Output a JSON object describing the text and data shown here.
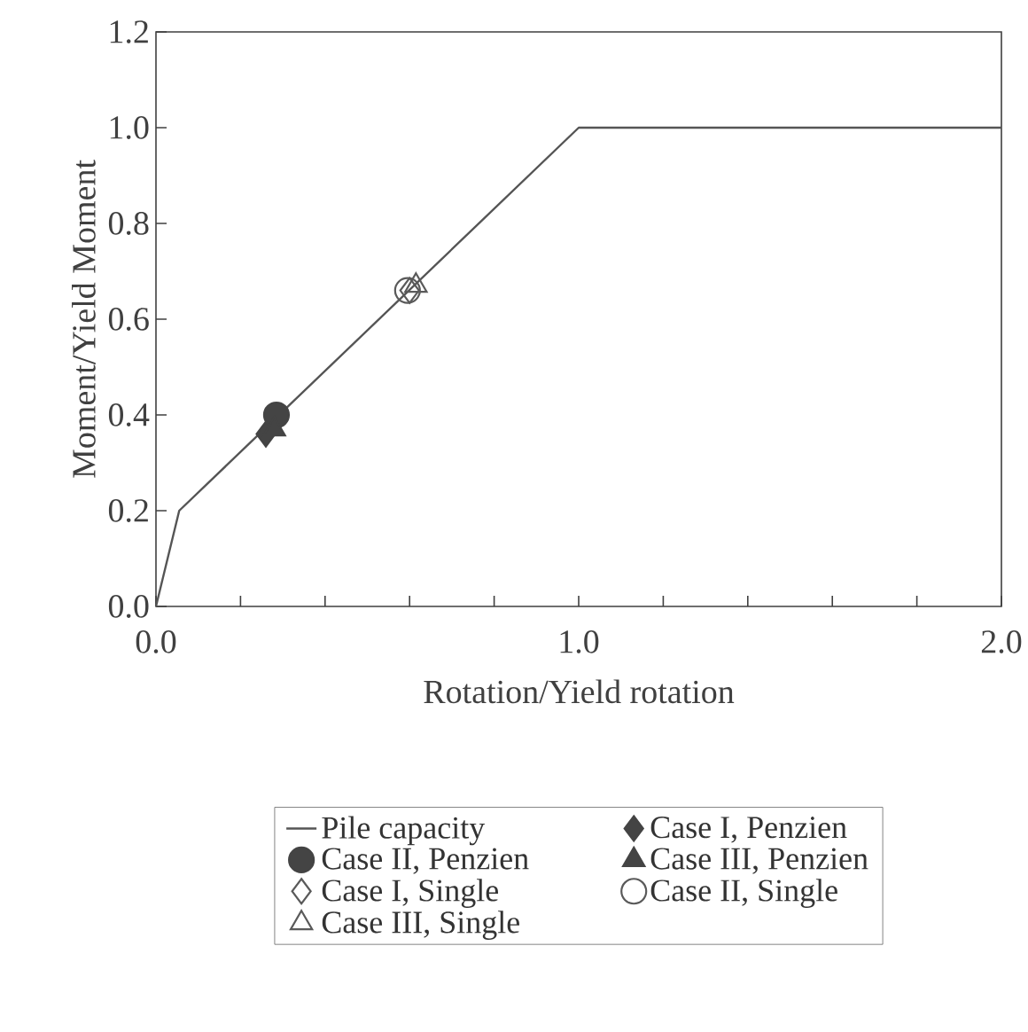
{
  "chart_data": {
    "type": "scatter",
    "xlabel": "Rotation/Yield rotation",
    "ylabel": "Moment/Yield Moment",
    "xlim": [
      0,
      2
    ],
    "ylim": [
      0,
      1.2
    ],
    "xticks": [
      {
        "value": 0,
        "label": "0.0"
      },
      {
        "value": 0.2,
        "label": null
      },
      {
        "value": 0.4,
        "label": null
      },
      {
        "value": 0.6,
        "label": null
      },
      {
        "value": 0.8,
        "label": null
      },
      {
        "value": 1,
        "label": "1.0"
      },
      {
        "value": 1.2,
        "label": null
      },
      {
        "value": 1.4,
        "label": null
      },
      {
        "value": 1.6,
        "label": null
      },
      {
        "value": 1.8,
        "label": null
      },
      {
        "value": 2,
        "label": "2.0"
      }
    ],
    "yticks": [
      {
        "value": 0,
        "label": "0.0"
      },
      {
        "value": 0.2,
        "label": "0.2"
      },
      {
        "value": 0.4,
        "label": "0.4"
      },
      {
        "value": 0.6,
        "label": "0.6"
      },
      {
        "value": 0.8,
        "label": "0.8"
      },
      {
        "value": 1,
        "label": "1.0"
      },
      {
        "value": 1.2,
        "label": "1.2"
      }
    ],
    "legend": "bottom",
    "grid": false,
    "series": [
      {
        "name": "Pile capacity",
        "type": "line",
        "color": "#555555",
        "marker": "none",
        "x": [
          0,
          0.055,
          1,
          2
        ],
        "values": [
          0,
          0.2,
          1,
          1
        ]
      },
      {
        "name": "Case I, Penzien",
        "color": "#444444",
        "marker": "diamond",
        "x": [
          0.26
        ],
        "values": [
          0.36
        ]
      },
      {
        "name": "Case II, Penzien",
        "color": "#444444",
        "marker": "circle",
        "x": [
          0.285
        ],
        "values": [
          0.4
        ]
      },
      {
        "name": "Case III, Penzien",
        "color": "#444444",
        "marker": "triangle",
        "x": [
          0.28
        ],
        "values": [
          0.37
        ]
      },
      {
        "name": "Case I, Single",
        "color": "#5a5a5a",
        "marker": "diamond",
        "x": [
          0.6
        ],
        "values": [
          0.66
        ]
      },
      {
        "name": "Case II, Single",
        "color": "#5a5a5a",
        "marker": "circle",
        "x": [
          0.595
        ],
        "values": [
          0.66
        ]
      },
      {
        "name": "Case III, Single",
        "color": "#5a5a5a",
        "marker": "triangle",
        "x": [
          0.615
        ],
        "values": [
          0.67
        ]
      }
    ]
  }
}
